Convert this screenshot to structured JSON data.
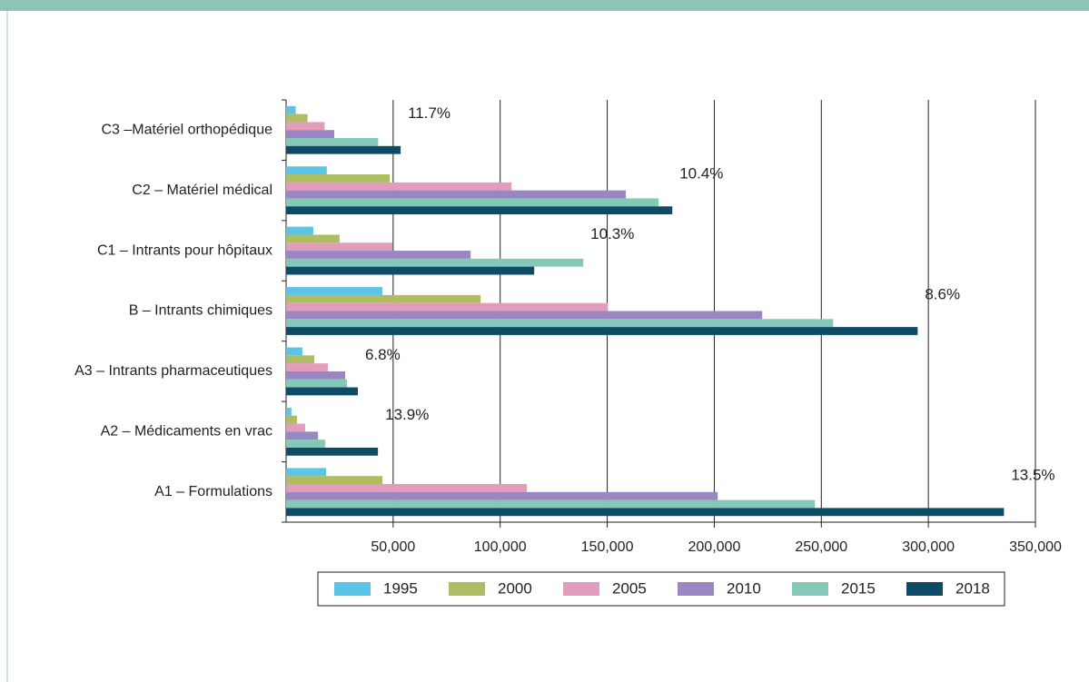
{
  "chart_data": {
    "type": "hbar",
    "categories": [
      "C3 –Matériel orthopédique",
      "C2 – Matériel médical",
      "C1 – Intrants pour hôpitaux",
      "B – Intrants chimiques",
      "A3 – Intrants pharmaceutiques",
      "A2 – Médicaments en vrac",
      "A1 – Formulations"
    ],
    "annotations": [
      "11.7%",
      "10.4%",
      "10.3%",
      "8.6%",
      "6.8%",
      "13.9%",
      "13.5%"
    ],
    "series": [
      {
        "name": "1995",
        "color": "#5bc5e8",
        "values": [
          4500,
          19000,
          12700,
          45000,
          7600,
          2500,
          18700
        ]
      },
      {
        "name": "2000",
        "color": "#afbd62",
        "values": [
          10000,
          48400,
          25000,
          90800,
          13200,
          5100,
          45000
        ]
      },
      {
        "name": "2005",
        "color": "#e39cbb",
        "values": [
          18000,
          105300,
          49700,
          150300,
          19500,
          8900,
          112500
        ]
      },
      {
        "name": "2010",
        "color": "#9a86c2",
        "values": [
          22500,
          158700,
          86200,
          222400,
          27600,
          14900,
          201600
        ]
      },
      {
        "name": "2015",
        "color": "#84c8b8",
        "values": [
          43000,
          174000,
          138800,
          255500,
          28400,
          18300,
          247000
        ]
      },
      {
        "name": "2018",
        "color": "#0e4b67",
        "values": [
          53500,
          180400,
          115900,
          295000,
          33500,
          42900,
          335300
        ]
      }
    ],
    "xlim": [
      0,
      350000
    ],
    "xticks": [
      {
        "value": 50000,
        "label": "50,000"
      },
      {
        "value": 100000,
        "label": "100,000"
      },
      {
        "value": 150000,
        "label": "150,000"
      },
      {
        "value": 200000,
        "label": "200,000"
      },
      {
        "value": 250000,
        "label": "250,000"
      },
      {
        "value": 300000,
        "label": "300,000"
      },
      {
        "value": 350000,
        "label": "350,000"
      }
    ],
    "grid": true
  }
}
